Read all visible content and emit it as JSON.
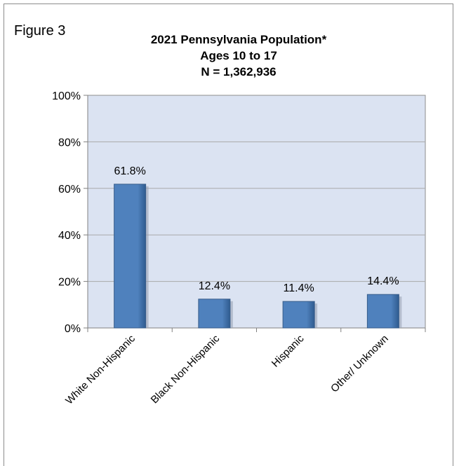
{
  "figure_label": "Figure 3",
  "colors": {
    "bar": "#4f81bd",
    "bar_dark": "#2f5b8f",
    "plot_bg": "#dbe3f2",
    "grid": "#a9a9a9"
  },
  "chart_data": {
    "type": "bar",
    "title": [
      "2021 Pennsylvania Population*",
      "Ages 10 to 17",
      "N = 1,362,936"
    ],
    "categories": [
      "White Non-Hispanic",
      "Black Non-Hispanic",
      "Hispanic",
      "Other/ Unknown"
    ],
    "values": [
      61.8,
      12.4,
      11.4,
      14.4
    ],
    "data_labels": [
      "61.8%",
      "12.4%",
      "11.4%",
      "14.4%"
    ],
    "yticks": [
      "0%",
      "20%",
      "40%",
      "60%",
      "80%",
      "100%"
    ],
    "ylim": [
      0,
      100
    ],
    "xlabel": "",
    "ylabel": "",
    "grid": true,
    "legend": "none"
  }
}
